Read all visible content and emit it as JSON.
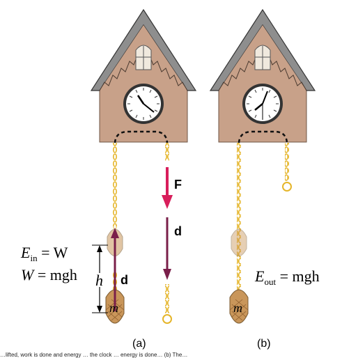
{
  "colors": {
    "house": "#c8a189",
    "roof": "#8a8a8a",
    "chain": "#e5b52a",
    "force_arrow": "#d81e5b",
    "displacement_arrow": "#7a1f4a",
    "weight": "#c9965a"
  },
  "labels": {
    "e_in": {
      "main": "E",
      "sub": "in",
      "rest": " = W"
    },
    "w_eq": {
      "main": "W",
      "rest": " = mgh"
    },
    "h": "h",
    "d_a": "d",
    "m_a": "m",
    "force": "F",
    "d_force": "d",
    "e_out": {
      "main": "E",
      "sub": "out",
      "rest": " = mgh"
    },
    "m_b": "m",
    "panel_a": "(a)",
    "panel_b": "(b)",
    "caption": "…lifted, work is done and energy … the clock … energy is done… (b) The…"
  }
}
